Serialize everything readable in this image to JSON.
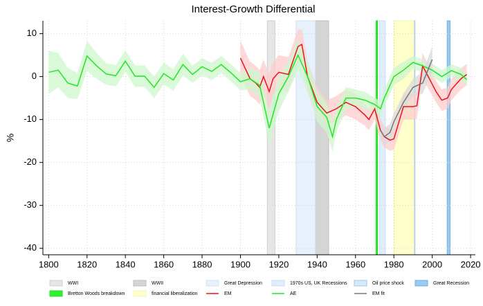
{
  "chart_data": {
    "type": "line",
    "title": "Interest-Growth Differential",
    "y_label": "%",
    "xlim": [
      1797,
      2022.5
    ],
    "ylim": [
      -41.5,
      13
    ],
    "xticks": [
      1800,
      1820,
      1840,
      1860,
      1880,
      1900,
      1920,
      1940,
      1960,
      1980,
      2000,
      2020
    ],
    "yticks": [
      -40,
      -30,
      -20,
      -10,
      0,
      10
    ],
    "grid": true,
    "shaded_periods": [
      {
        "name": "WWI",
        "start": 1914,
        "end": 1918,
        "color": "#e6e6e6",
        "edge": "#cfcfcf"
      },
      {
        "name": "WWII",
        "start": 1939,
        "end": 1946,
        "color": "#d5d5d5",
        "edge": "#bdbdbd"
      },
      {
        "name": "Great Depression",
        "start": 1929,
        "end": 1939,
        "color": "#e6f1fb",
        "edge": "#d0e3f5"
      },
      {
        "name": "1970s US, UK Recessions",
        "start": 1972.5,
        "end": 1975.5,
        "color": "#e0eefb",
        "edge": "#c7dff5"
      },
      {
        "name": "Oil price shock",
        "start": 1990.3,
        "end": 1991,
        "color": "#d7e8f8",
        "edge": "#9cc6ee"
      },
      {
        "name": "Great Recession",
        "start": 2007.8,
        "end": 2009.3,
        "color": "#9ccbf0",
        "edge": "#6aaee6"
      },
      {
        "name": "Bretton Woods breakdown",
        "start": 1970.7,
        "end": 1971.5,
        "color": "#33ee33",
        "edge": "#22dd22"
      },
      {
        "name": "financial liberalization",
        "start": 1980,
        "end": 1990.3,
        "color": "#ffffcc",
        "edge": "#f5f5b0"
      }
    ],
    "series": [
      {
        "name": "EM",
        "color": "#e8141b",
        "band_color": "#ffcccc",
        "x": [
          1900,
          1905,
          1908,
          1910,
          1912,
          1915,
          1917,
          1920,
          1925,
          1930,
          1932,
          1935,
          1940,
          1945,
          1950,
          1955,
          1960,
          1965,
          1967,
          1970,
          1973,
          1975,
          1978,
          1980,
          1985,
          1990,
          1992,
          1995,
          2002,
          2005,
          2008,
          2010,
          2015,
          2018
        ],
        "values": [
          4.3,
          -0.5,
          -1.5,
          -2.5,
          0,
          -3.5,
          -0.5,
          1,
          0.5,
          7,
          7.5,
          0,
          -6,
          -8.5,
          -7.5,
          -6,
          -7,
          -9,
          -10,
          -7.5,
          -12.5,
          -14,
          -14.8,
          -14.5,
          -7,
          -7,
          -6.8,
          2.5,
          -3.5,
          -5.5,
          -5,
          -3,
          -0.5,
          0.5
        ],
        "errors": [
          4,
          4,
          4,
          4,
          4,
          4,
          4,
          4,
          4,
          4,
          3.5,
          3.5,
          3.5,
          3,
          3,
          3,
          3,
          2.5,
          2.5,
          2.5,
          2.5,
          2.5,
          2.5,
          2.5,
          3,
          3,
          3,
          3,
          2.5,
          2.5,
          2.5,
          2.5,
          2.5,
          2.5
        ]
      },
      {
        "name": "AE",
        "color": "#22e622",
        "band_color": "#ccf7cc",
        "x": [
          1800,
          1805,
          1810,
          1815,
          1820,
          1825,
          1830,
          1835,
          1840,
          1845,
          1850,
          1855,
          1860,
          1865,
          1870,
          1875,
          1880,
          1885,
          1890,
          1895,
          1900,
          1905,
          1910,
          1915,
          1920,
          1925,
          1930,
          1935,
          1940,
          1945,
          1948,
          1950,
          1955,
          1960,
          1965,
          1970,
          1973,
          1975,
          1980,
          1985,
          1990,
          1995,
          2000,
          2005,
          2010,
          2015,
          2018
        ],
        "values": [
          1,
          1.5,
          -1.5,
          -2.2,
          4.8,
          2.5,
          0.6,
          0.2,
          3.6,
          0.1,
          0.1,
          -2.5,
          0.7,
          -0.8,
          2.8,
          0.5,
          2.3,
          1.2,
          2.8,
          0.9,
          -1.2,
          -0.5,
          -2,
          -12,
          -4,
          0,
          5,
          0,
          -7,
          -9.5,
          -14,
          -10,
          -5,
          -5,
          -5.5,
          -6.5,
          -7.5,
          -5,
          0,
          1.5,
          3.3,
          2.5,
          1.5,
          0,
          1.4,
          0.5,
          -0.7
        ],
        "errors": [
          5,
          4,
          3.5,
          3,
          3.5,
          3,
          2.5,
          2.5,
          2.5,
          2.5,
          2.5,
          2.5,
          2.5,
          2.5,
          2.5,
          2,
          2,
          2,
          2,
          2,
          2,
          2.5,
          3,
          4,
          4,
          3.5,
          3.5,
          3.5,
          3.5,
          3.5,
          3.5,
          3,
          2.5,
          2,
          2,
          1.5,
          2,
          2,
          2,
          2,
          1.5,
          1.5,
          1.5,
          1.5,
          1.5,
          1.5,
          1.5
        ]
      },
      {
        "name": "EM fit",
        "color": "#777777",
        "band_color": "#d9d9d9",
        "x": [
          1973,
          1975,
          1978,
          1980,
          1985,
          1990,
          1995,
          2000
        ],
        "values": [
          -12.5,
          -14,
          -13,
          -10.5,
          -6,
          -2.5,
          -1.5,
          4
        ],
        "errors": [
          1.5,
          2,
          2,
          2,
          2,
          2,
          2.5,
          3
        ]
      }
    ]
  }
}
